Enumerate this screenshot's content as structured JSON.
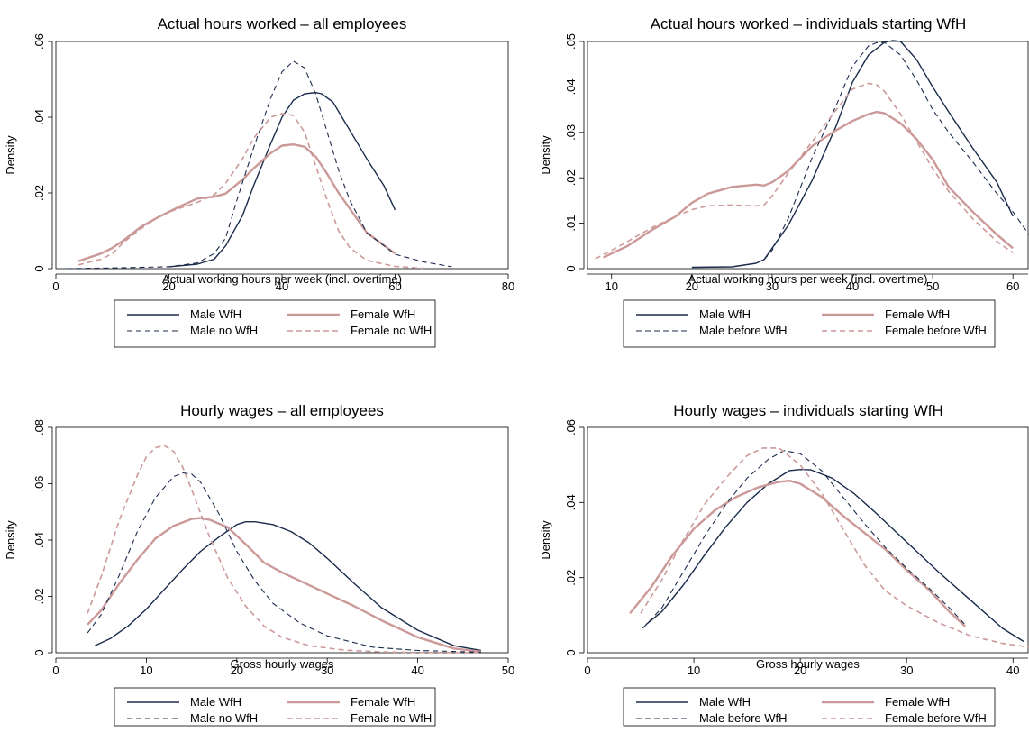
{
  "colors": {
    "male": "#1a2b4c",
    "female": "#cc9999"
  },
  "chart_data": [
    {
      "type": "line",
      "title": "Actual hours worked – all employees",
      "xlabel": "Actual working hours per week (incl. overtime)",
      "ylabel": "Density",
      "xlim": [
        0,
        80
      ],
      "ylim": [
        0,
        0.06
      ],
      "xticks": [
        0,
        20,
        40,
        60,
        80
      ],
      "xtick_labels": [
        "0",
        "20",
        "40",
        "60",
        "80"
      ],
      "yticks": [
        0,
        0.02,
        0.04,
        0.06
      ],
      "ytick_labels": [
        "0",
        ".02",
        ".04",
        ".06"
      ],
      "legend": [
        "Male WfH",
        "Female WfH",
        "Male no WfH",
        "Female no WfH"
      ],
      "series": [
        {
          "name": "Male WfH",
          "color": "male",
          "dash": "solid",
          "width": 1.4,
          "x": [
            20,
            25,
            28,
            30,
            33,
            35,
            38,
            40,
            42,
            44,
            46,
            47,
            49,
            52,
            55,
            58,
            60
          ],
          "y": [
            0.0005,
            0.0012,
            0.0025,
            0.006,
            0.014,
            0.022,
            0.033,
            0.04,
            0.0445,
            0.0462,
            0.0465,
            0.0462,
            0.044,
            0.0365,
            0.029,
            0.022,
            0.0155
          ]
        },
        {
          "name": "Female WfH",
          "color": "female",
          "dash": "solid",
          "width": 2.4,
          "x": [
            4,
            8,
            10,
            12,
            15,
            18,
            20,
            22,
            25,
            28,
            30,
            33,
            35,
            38,
            40,
            42,
            44,
            46,
            48,
            50,
            55,
            60
          ],
          "y": [
            0.002,
            0.004,
            0.0055,
            0.0075,
            0.011,
            0.0135,
            0.015,
            0.0165,
            0.0185,
            0.019,
            0.0198,
            0.0235,
            0.0265,
            0.0305,
            0.0325,
            0.0328,
            0.0322,
            0.0295,
            0.025,
            0.02,
            0.0095,
            0.004
          ]
        },
        {
          "name": "Male no WfH",
          "color": "male",
          "dash": "6,4",
          "width": 1.1,
          "x": [
            2,
            10,
            20,
            25,
            28,
            30,
            32,
            35,
            38,
            40,
            42,
            44,
            46,
            48,
            50,
            52,
            55,
            60,
            65,
            70
          ],
          "y": [
            0,
            0.0002,
            0.0005,
            0.0015,
            0.004,
            0.008,
            0.018,
            0.032,
            0.045,
            0.052,
            0.0548,
            0.053,
            0.046,
            0.036,
            0.026,
            0.018,
            0.0095,
            0.0038,
            0.0018,
            0.0005
          ]
        },
        {
          "name": "Female no WfH",
          "color": "female",
          "dash": "6,4",
          "width": 1.6,
          "x": [
            4,
            8,
            10,
            12,
            15,
            18,
            20,
            22,
            25,
            28,
            30,
            33,
            35,
            38,
            40,
            42,
            44,
            46,
            48,
            50,
            52,
            55,
            60,
            65
          ],
          "y": [
            0.001,
            0.0025,
            0.004,
            0.007,
            0.0105,
            0.0135,
            0.015,
            0.016,
            0.0175,
            0.0195,
            0.0225,
            0.029,
            0.0345,
            0.04,
            0.041,
            0.0405,
            0.036,
            0.027,
            0.018,
            0.01,
            0.0055,
            0.0022,
            0.0006,
            0.0001
          ]
        }
      ]
    },
    {
      "type": "line",
      "title": "Actual hours worked – individuals starting WfH",
      "xlabel": "Actual working hours per week (incl. overtime)",
      "ylabel": "Density",
      "xlim": [
        7,
        62
      ],
      "ylim": [
        0,
        0.05
      ],
      "xticks": [
        10,
        20,
        30,
        40,
        50,
        60
      ],
      "xtick_labels": [
        "10",
        "20",
        "30",
        "40",
        "50",
        "60"
      ],
      "yticks": [
        0,
        0.01,
        0.02,
        0.03,
        0.04,
        0.05
      ],
      "ytick_labels": [
        "0",
        ".01",
        ".02",
        ".03",
        ".04",
        ".05"
      ],
      "legend": [
        "Male WfH",
        "Female WfH",
        "Male before WfH",
        "Female before WfH"
      ],
      "series": [
        {
          "name": "Male WfH",
          "color": "male",
          "dash": "solid",
          "width": 1.4,
          "x": [
            20,
            25,
            28,
            29,
            30,
            32,
            35,
            38,
            40,
            42,
            44,
            45,
            46,
            48,
            50,
            52,
            55,
            58,
            60
          ],
          "y": [
            0.0003,
            0.0004,
            0.0012,
            0.002,
            0.0045,
            0.0095,
            0.0195,
            0.0315,
            0.041,
            0.047,
            0.0498,
            0.0502,
            0.05,
            0.046,
            0.04,
            0.0345,
            0.0265,
            0.019,
            0.0115
          ]
        },
        {
          "name": "Female WfH",
          "color": "female",
          "dash": "solid",
          "width": 2.4,
          "x": [
            9,
            12,
            15,
            18,
            20,
            22,
            25,
            28,
            29,
            30,
            32,
            35,
            38,
            40,
            42,
            43,
            44,
            46,
            48,
            50,
            52,
            55,
            58,
            60
          ],
          "y": [
            0.0025,
            0.005,
            0.0085,
            0.0115,
            0.0145,
            0.0165,
            0.018,
            0.0185,
            0.0183,
            0.019,
            0.0215,
            0.027,
            0.0305,
            0.0325,
            0.034,
            0.0345,
            0.0342,
            0.032,
            0.0285,
            0.024,
            0.018,
            0.0125,
            0.0075,
            0.0045
          ]
        },
        {
          "name": "Male before WfH",
          "color": "male",
          "dash": "6,4",
          "width": 1.1,
          "x": [
            29,
            30,
            32,
            35,
            38,
            40,
            42,
            43,
            44,
            46,
            48,
            50,
            52,
            55,
            58,
            60,
            62
          ],
          "y": [
            0.002,
            0.004,
            0.011,
            0.0245,
            0.036,
            0.0445,
            0.049,
            0.0497,
            0.0498,
            0.047,
            0.0415,
            0.035,
            0.03,
            0.0235,
            0.0165,
            0.0125,
            0.0075
          ]
        },
        {
          "name": "Female before WfH",
          "color": "female",
          "dash": "6,4",
          "width": 1.6,
          "x": [
            8,
            10,
            12,
            15,
            18,
            20,
            22,
            25,
            28,
            29,
            30,
            32,
            35,
            38,
            40,
            42,
            43,
            44,
            46,
            48,
            50,
            52,
            55,
            58,
            60
          ],
          "y": [
            0.0022,
            0.004,
            0.006,
            0.009,
            0.0115,
            0.013,
            0.0138,
            0.014,
            0.0138,
            0.014,
            0.016,
            0.021,
            0.028,
            0.035,
            0.0395,
            0.0408,
            0.0405,
            0.039,
            0.034,
            0.028,
            0.022,
            0.017,
            0.011,
            0.006,
            0.0035
          ]
        }
      ]
    },
    {
      "type": "line",
      "title": "Hourly wages – all employees",
      "xlabel": "Gross hourly wages",
      "ylabel": "Density",
      "xlim": [
        0,
        50
      ],
      "ylim": [
        0,
        0.08
      ],
      "xticks": [
        0,
        10,
        20,
        30,
        40,
        50
      ],
      "xtick_labels": [
        "0",
        "10",
        "20",
        "30",
        "40",
        "50"
      ],
      "yticks": [
        0,
        0.02,
        0.04,
        0.06,
        0.08
      ],
      "ytick_labels": [
        "0",
        ".02",
        ".04",
        ".06",
        ".08"
      ],
      "legend": [
        "Male WfH",
        "Female WfH",
        "Male no WfH",
        "Female no WfH"
      ],
      "series": [
        {
          "name": "Male WfH",
          "color": "male",
          "dash": "solid",
          "width": 1.4,
          "x": [
            4.3,
            6,
            8,
            10,
            12,
            14,
            16,
            18,
            20,
            21,
            22,
            24,
            26,
            28,
            30,
            33,
            36,
            40,
            44,
            47
          ],
          "y": [
            0.0025,
            0.005,
            0.0095,
            0.0155,
            0.0225,
            0.0295,
            0.036,
            0.041,
            0.0455,
            0.0465,
            0.0465,
            0.0455,
            0.043,
            0.039,
            0.0335,
            0.0245,
            0.016,
            0.008,
            0.0025,
            0.0008
          ]
        },
        {
          "name": "Female WfH",
          "color": "female",
          "dash": "solid",
          "width": 2.4,
          "x": [
            3.5,
            5,
            7,
            9,
            11,
            13,
            15,
            16,
            17,
            19,
            21,
            23,
            25,
            27,
            30,
            33,
            36,
            40,
            44,
            47
          ],
          "y": [
            0.01,
            0.015,
            0.0245,
            0.033,
            0.0405,
            0.045,
            0.0475,
            0.0478,
            0.0472,
            0.0445,
            0.0385,
            0.032,
            0.0285,
            0.0255,
            0.021,
            0.0165,
            0.0115,
            0.0055,
            0.0015,
            0.0004
          ]
        },
        {
          "name": "Male no WfH",
          "color": "male",
          "dash": "6,4",
          "width": 1.1,
          "x": [
            3.5,
            5,
            7,
            9,
            11,
            13,
            14,
            15,
            16,
            18,
            20,
            22,
            24,
            27,
            30,
            35,
            40,
            47
          ],
          "y": [
            0.007,
            0.0135,
            0.0275,
            0.043,
            0.055,
            0.0625,
            0.0638,
            0.0635,
            0.0605,
            0.0495,
            0.036,
            0.0255,
            0.0175,
            0.0105,
            0.006,
            0.002,
            0.0008,
            0.0002
          ]
        },
        {
          "name": "Female no WfH",
          "color": "female",
          "dash": "6,4",
          "width": 1.6,
          "x": [
            3.5,
            5,
            7,
            9,
            10,
            11,
            12,
            13,
            14,
            15,
            17,
            19,
            21,
            23,
            25,
            28,
            32,
            36,
            40,
            47
          ],
          "y": [
            0.014,
            0.027,
            0.047,
            0.063,
            0.0695,
            0.0728,
            0.0735,
            0.0715,
            0.066,
            0.058,
            0.041,
            0.0265,
            0.0165,
            0.0095,
            0.0055,
            0.0025,
            0.0009,
            0.0003,
            0.0001,
            0.0
          ]
        }
      ]
    },
    {
      "type": "line",
      "title": "Hourly wages – individuals starting WfH",
      "xlabel": "Gross hourly wages",
      "ylabel": "Density",
      "xlim": [
        0,
        41.5
      ],
      "ylim": [
        0,
        0.06
      ],
      "xticks": [
        0,
        10,
        20,
        30,
        40
      ],
      "xtick_labels": [
        "0",
        "10",
        "20",
        "30",
        "40"
      ],
      "yticks": [
        0,
        0.02,
        0.04,
        0.06
      ],
      "ytick_labels": [
        "0",
        ".02",
        ".04",
        ".06"
      ],
      "legend": [
        "Male WfH",
        "Female WfH",
        "Male before WfH",
        "Female before WfH"
      ],
      "series": [
        {
          "name": "Male WfH",
          "color": "male",
          "dash": "solid",
          "width": 1.4,
          "x": [
            5.5,
            7,
            9,
            11,
            13,
            15,
            17,
            19,
            20,
            21,
            23,
            25,
            27,
            30,
            33,
            36,
            39,
            41
          ],
          "y": [
            0.0075,
            0.011,
            0.018,
            0.026,
            0.0335,
            0.04,
            0.045,
            0.0485,
            0.0488,
            0.0487,
            0.0465,
            0.0425,
            0.0375,
            0.0295,
            0.0215,
            0.014,
            0.0065,
            0.003
          ]
        },
        {
          "name": "Female WfH",
          "color": "female",
          "dash": "solid",
          "width": 2.4,
          "x": [
            4,
            6,
            8,
            10,
            12,
            14,
            16,
            18,
            19,
            20,
            22,
            24,
            26,
            28,
            30,
            32,
            34,
            35.5
          ],
          "y": [
            0.0105,
            0.0175,
            0.026,
            0.033,
            0.038,
            0.0415,
            0.044,
            0.0455,
            0.0458,
            0.045,
            0.0415,
            0.0365,
            0.032,
            0.0275,
            0.022,
            0.017,
            0.011,
            0.007
          ]
        },
        {
          "name": "Male before WfH",
          "color": "male",
          "dash": "6,4",
          "width": 1.1,
          "x": [
            5.2,
            7,
            9,
            11,
            13,
            15,
            17,
            18.5,
            20,
            22,
            24,
            26,
            28,
            30,
            32,
            34,
            35.5
          ],
          "y": [
            0.0065,
            0.012,
            0.0215,
            0.031,
            0.0395,
            0.0465,
            0.0515,
            0.0538,
            0.053,
            0.0485,
            0.0415,
            0.0345,
            0.028,
            0.0225,
            0.0175,
            0.012,
            0.0075
          ]
        },
        {
          "name": "Female before WfH",
          "color": "female",
          "dash": "6,4",
          "width": 1.6,
          "x": [
            5,
            7,
            9,
            11,
            13,
            15,
            16.5,
            18,
            20,
            22,
            24,
            26,
            28,
            30,
            33,
            36,
            39,
            41.5
          ],
          "y": [
            0.0105,
            0.0195,
            0.03,
            0.0395,
            0.0465,
            0.0525,
            0.0545,
            0.0545,
            0.05,
            0.0425,
            0.033,
            0.0235,
            0.0165,
            0.0125,
            0.008,
            0.0045,
            0.0025,
            0.0015
          ]
        }
      ]
    }
  ]
}
